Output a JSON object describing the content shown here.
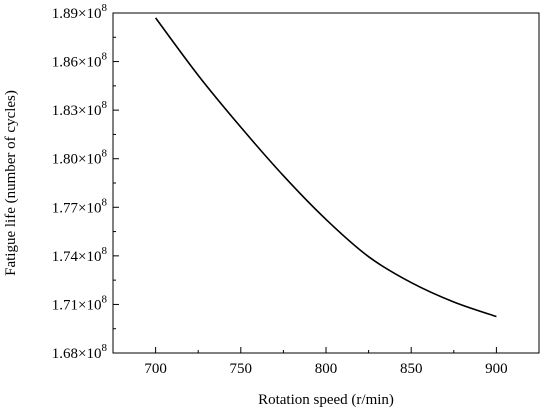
{
  "chart_data": {
    "type": "line",
    "title": "",
    "xlabel": "Rotation speed (r/min)",
    "ylabel": "Fatigue life (number of cycles)",
    "xlim": [
      675,
      925
    ],
    "ylim": [
      168000000.0,
      189000000.0
    ],
    "x_ticks": [
      700,
      750,
      800,
      850,
      900
    ],
    "y_ticks": [
      {
        "value": 168000000.0,
        "mantissa": "1.68",
        "base": "×10",
        "exp": "8"
      },
      {
        "value": 171000000.0,
        "mantissa": "1.71",
        "base": "×10",
        "exp": "8"
      },
      {
        "value": 174000000.0,
        "mantissa": "1.74",
        "base": "×10",
        "exp": "8"
      },
      {
        "value": 177000000.0,
        "mantissa": "1.77",
        "base": "×10",
        "exp": "8"
      },
      {
        "value": 180000000.0,
        "mantissa": "1.80",
        "base": "×10",
        "exp": "8"
      },
      {
        "value": 183000000.0,
        "mantissa": "1.83",
        "base": "×10",
        "exp": "8"
      },
      {
        "value": 186000000.0,
        "mantissa": "1.86",
        "base": "×10",
        "exp": "8"
      },
      {
        "value": 189000000.0,
        "mantissa": "1.89",
        "base": "×10",
        "exp": "8"
      }
    ],
    "grid": false,
    "series": [
      {
        "x": [
          700,
          725,
          750,
          775,
          800,
          825,
          850,
          875,
          900
        ],
        "values": [
          188700000.0,
          185150000.0,
          181950000.0,
          178950000.0,
          176250000.0,
          173950000.0,
          172350000.0,
          171150000.0,
          170250000.0
        ]
      }
    ]
  }
}
